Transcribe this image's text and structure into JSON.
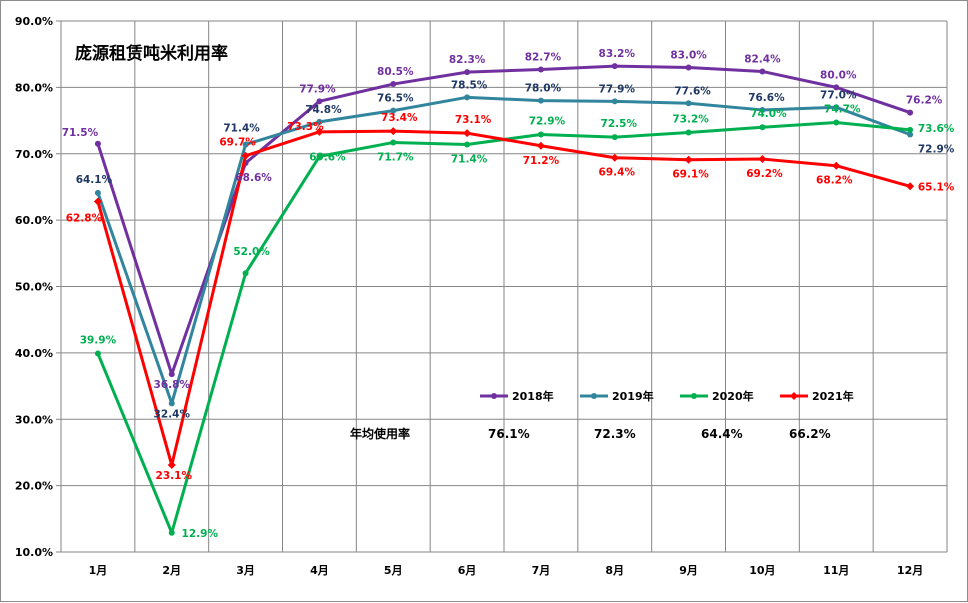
{
  "chart_data": {
    "type": "line",
    "title": "庞源租赁吨米利用率",
    "categories": [
      "1月",
      "2月",
      "3月",
      "4月",
      "5月",
      "6月",
      "7月",
      "8月",
      "9月",
      "10月",
      "11月",
      "12月"
    ],
    "y_ticks": [
      "10.0%",
      "20.0%",
      "30.0%",
      "40.0%",
      "50.0%",
      "60.0%",
      "70.0%",
      "80.0%",
      "90.0%"
    ],
    "ylim": [
      10,
      90
    ],
    "grid": true,
    "legend_position": "inside-lower-right",
    "series": [
      {
        "name": "2018年",
        "color": "#7030A0",
        "marker": "circle",
        "values": [
          71.5,
          36.8,
          68.6,
          77.9,
          80.5,
          82.3,
          82.7,
          83.2,
          83.0,
          82.4,
          80.0,
          76.2
        ],
        "labels": [
          "71.5%",
          "36.8%",
          "68.6%",
          "77.9%",
          "80.5%",
          "82.3%",
          "82.7%",
          "83.2%",
          "83.0%",
          "82.4%",
          "80.0%",
          "76.2%"
        ]
      },
      {
        "name": "2019年",
        "color": "#31859C",
        "label_color": "#1F3864",
        "marker": "circle",
        "values": [
          64.1,
          32.4,
          71.4,
          74.8,
          76.5,
          78.5,
          78.0,
          77.9,
          77.6,
          76.6,
          77.0,
          72.9
        ],
        "labels": [
          "64.1%",
          "32.4%",
          "71.4%",
          "74.8%",
          "76.5%",
          "78.5%",
          "78.0%",
          "77.9%",
          "77.6%",
          "76.6%",
          "77.0%",
          "72.9%"
        ]
      },
      {
        "name": "2020年",
        "color": "#00B050",
        "marker": "circle",
        "values": [
          39.9,
          12.9,
          52.0,
          69.6,
          71.7,
          71.4,
          72.9,
          72.5,
          73.2,
          74.0,
          74.7,
          73.6
        ],
        "labels": [
          "39.9%",
          "12.9%",
          "52.0%",
          "69.6%",
          "71.7%",
          "71.4%",
          "72.9%",
          "72.5%",
          "73.2%",
          "74.0%",
          "74.7%",
          "73.6%"
        ]
      },
      {
        "name": "2021年",
        "color": "#FF0000",
        "marker": "diamond",
        "values": [
          62.8,
          23.1,
          69.7,
          73.3,
          73.4,
          73.1,
          71.2,
          69.4,
          69.1,
          69.2,
          68.2,
          65.1
        ],
        "labels": [
          "62.8%",
          "23.1%",
          "69.7%",
          "73.3%",
          "73.4%",
          "73.1%",
          "71.2%",
          "69.4%",
          "69.1%",
          "69.2%",
          "68.2%",
          "65.1%"
        ]
      }
    ],
    "annotation": {
      "label": "年均使用率",
      "values": [
        "76.1%",
        "72.3%",
        "64.4%",
        "66.2%"
      ]
    }
  }
}
